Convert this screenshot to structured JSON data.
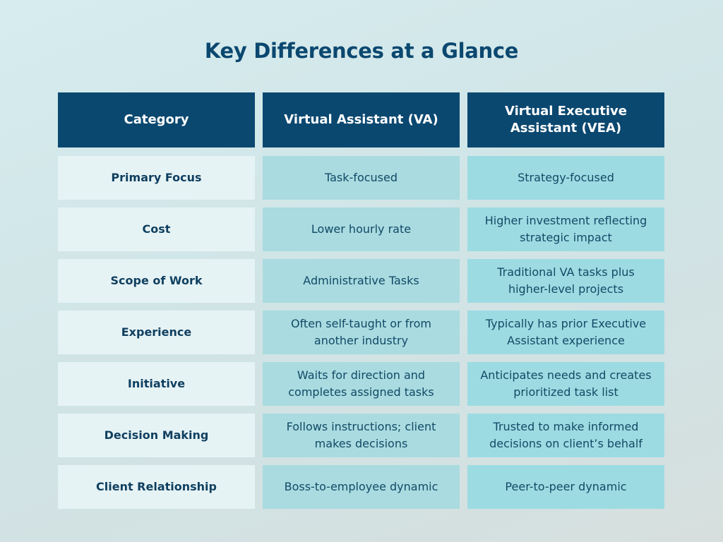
{
  "title": "Key Differences at a Glance",
  "headers": [
    "Category",
    "Virtual Assistant (VA)",
    "Virtual Executive Assistant (VEA)"
  ],
  "rows": [
    {
      "category": "Primary Focus",
      "va": "Task-focused",
      "vea": "Strategy-focused"
    },
    {
      "category": "Cost",
      "va": "Lower hourly rate",
      "vea": "Higher investment reflecting strategic impact"
    },
    {
      "category": "Scope of Work",
      "va": "Administrative Tasks",
      "vea": "Traditional VA tasks plus higher-level projects"
    },
    {
      "category": "Experience",
      "va": "Often self-taught or from another industry",
      "vea": "Typically has prior Executive Assistant experience"
    },
    {
      "category": "Initiative",
      "va": "Waits for direction and completes assigned tasks",
      "vea": "Anticipates needs and creates prioritized task list"
    },
    {
      "category": "Decision Making",
      "va": "Follows instructions; client makes decisions",
      "vea": "Trusted to make informed decisions on client’s behalf"
    },
    {
      "category": "Client Relationship",
      "va": "Boss-to-employee dynamic",
      "vea": "Peer-to-peer dynamic"
    }
  ],
  "colors": {
    "header": "#0b4870",
    "category": "#e6f3f5",
    "va": "#a9dbe0",
    "vea": "#9cdbe2"
  }
}
